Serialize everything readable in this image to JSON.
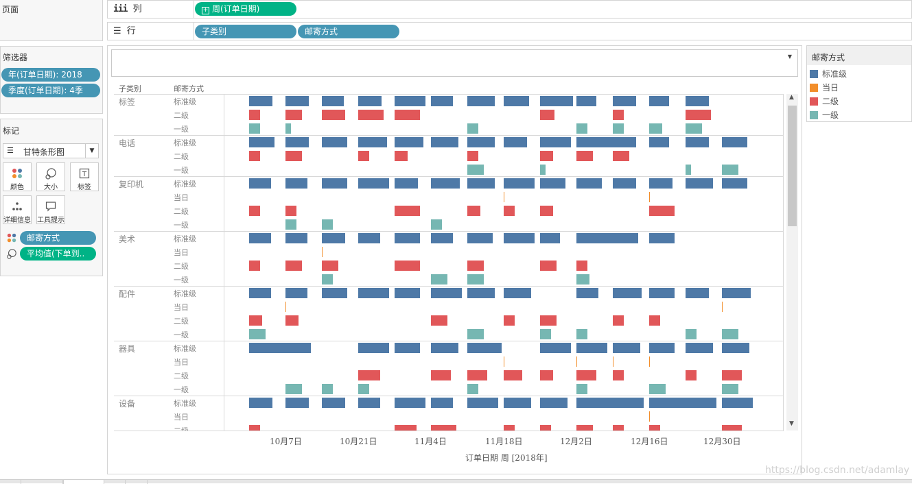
{
  "pages_shelf": {
    "title": "页面"
  },
  "columns_shelf": {
    "label": "列",
    "pills": [
      "周(订单日期)"
    ]
  },
  "rows_shelf": {
    "label": "行",
    "pills": [
      "子类别",
      "邮寄方式"
    ]
  },
  "filters": {
    "title": "筛选器",
    "pills": [
      "年(订单日期): 2018",
      "季度(订单日期): 4季"
    ]
  },
  "marks": {
    "title": "标记",
    "mark_type": "甘特条形图",
    "buttons": {
      "color": "颜色",
      "size": "大小",
      "label": "标签",
      "detail": "详细信息",
      "tooltip": "工具提示"
    },
    "fields": [
      "邮寄方式",
      "平均值(下单到.."
    ]
  },
  "legend": {
    "title": "邮寄方式",
    "items": [
      {
        "name": "标准级",
        "color": "#4e79a7"
      },
      {
        "name": "当日",
        "color": "#f28e2b"
      },
      {
        "name": "二级",
        "color": "#e15759"
      },
      {
        "name": "一级",
        "color": "#76b7b2"
      }
    ]
  },
  "view": {
    "header_category": "子类别",
    "header_ship": "邮寄方式",
    "x_axis_title": "订单日期 周 [2018年]"
  },
  "watermark": "https://blog.csdn.net/adamlay",
  "chart_data": {
    "type": "gantt",
    "x_axis": {
      "title": "订单日期 周 [2018年]",
      "unit": "week",
      "range": [
        "2018-09-30",
        "2018-12-30"
      ],
      "tick_labels": [
        "10月7日",
        "10月21日",
        "11月4日",
        "11月18日",
        "12月2日",
        "12月16日",
        "12月30日"
      ]
    },
    "colors": {
      "标准级": "#4e79a7",
      "当日": "#f28e2b",
      "二级": "#e15759",
      "一级": "#76b7b2"
    },
    "categories": [
      {
        "name": "标签",
        "rows": [
          {
            "ship": "标准级",
            "bars": [
              [
                0,
                0.65
              ],
              [
                1,
                0.65
              ],
              [
                2,
                0.6
              ],
              [
                3,
                0.65
              ],
              [
                4,
                0.85
              ],
              [
                5,
                0.6
              ],
              [
                6,
                0.75
              ],
              [
                7,
                0.7
              ],
              [
                8,
                0.9
              ],
              [
                9,
                0.55
              ],
              [
                10,
                0.65
              ],
              [
                11,
                0.55
              ],
              [
                12,
                0.65
              ]
            ]
          },
          {
            "ship": "二级",
            "bars": [
              [
                0,
                0.3
              ],
              [
                1,
                0.45
              ],
              [
                2,
                0.65
              ],
              [
                3,
                0.7
              ],
              [
                4,
                0.7
              ],
              [
                8,
                0.4
              ],
              [
                10,
                0.3
              ],
              [
                12,
                0.7
              ]
            ]
          },
          {
            "ship": "一级",
            "bars": [
              [
                0,
                0.3
              ],
              [
                1,
                0.15
              ],
              [
                6,
                0.3
              ],
              [
                9,
                0.3
              ],
              [
                10,
                0.3
              ],
              [
                11,
                0.35
              ],
              [
                12,
                0.45
              ]
            ]
          }
        ]
      },
      {
        "name": "电话",
        "rows": [
          {
            "ship": "标准级",
            "bars": [
              [
                0,
                0.7
              ],
              [
                1,
                0.65
              ],
              [
                2,
                0.7
              ],
              [
                3,
                0.8
              ],
              [
                4,
                0.8
              ],
              [
                5,
                0.75
              ],
              [
                6,
                0.75
              ],
              [
                7,
                0.65
              ],
              [
                8,
                0.85
              ],
              [
                9,
                1.65
              ],
              [
                11,
                0.55
              ],
              [
                12,
                0.65
              ],
              [
                13,
                0.7
              ]
            ]
          },
          {
            "ship": "二级",
            "bars": [
              [
                0,
                0.3
              ],
              [
                1,
                0.45
              ],
              [
                3,
                0.3
              ],
              [
                4,
                0.35
              ],
              [
                6,
                0.3
              ],
              [
                8,
                0.35
              ],
              [
                9,
                0.45
              ],
              [
                10,
                0.45
              ]
            ]
          },
          {
            "ship": "一级",
            "bars": [
              [
                6,
                0.45
              ],
              [
                8,
                0.15
              ],
              [
                12,
                0.15
              ],
              [
                13,
                0.45
              ]
            ]
          }
        ]
      },
      {
        "name": "复印机",
        "rows": [
          {
            "ship": "标准级",
            "bars": [
              [
                0,
                0.6
              ],
              [
                1,
                0.6
              ],
              [
                2,
                0.7
              ],
              [
                3,
                0.85
              ],
              [
                4,
                0.65
              ],
              [
                5,
                0.8
              ],
              [
                6,
                0.75
              ],
              [
                7,
                0.85
              ],
              [
                8,
                0.7
              ],
              [
                9,
                0.7
              ],
              [
                10,
                0.65
              ],
              [
                11,
                0.65
              ],
              [
                12,
                0.75
              ],
              [
                13,
                0.7
              ]
            ]
          },
          {
            "ship": "当日",
            "bars": [
              [
                7,
                0.02
              ],
              [
                11,
                0.02
              ]
            ]
          },
          {
            "ship": "二级",
            "bars": [
              [
                0,
                0.3
              ],
              [
                1,
                0.3
              ],
              [
                4,
                0.7
              ],
              [
                6,
                0.35
              ],
              [
                7,
                0.3
              ],
              [
                8,
                0.35
              ],
              [
                11,
                0.7
              ]
            ]
          },
          {
            "ship": "一级",
            "bars": [
              [
                1,
                0.3
              ],
              [
                2,
                0.3
              ],
              [
                5,
                0.3
              ]
            ]
          }
        ]
      },
      {
        "name": "美术",
        "rows": [
          {
            "ship": "标准级",
            "bars": [
              [
                0,
                0.6
              ],
              [
                1,
                0.6
              ],
              [
                2,
                0.65
              ],
              [
                3,
                0.6
              ],
              [
                4,
                0.7
              ],
              [
                5,
                0.6
              ],
              [
                6,
                0.7
              ],
              [
                7,
                0.85
              ],
              [
                8,
                0.55
              ],
              [
                9,
                1.7
              ],
              [
                11,
                0.7
              ]
            ]
          },
          {
            "ship": "当日",
            "bars": [
              [
                2,
                0.02
              ]
            ]
          },
          {
            "ship": "二级",
            "bars": [
              [
                0,
                0.3
              ],
              [
                1,
                0.45
              ],
              [
                2,
                0.45
              ],
              [
                4,
                0.7
              ],
              [
                6,
                0.45
              ],
              [
                8,
                0.45
              ],
              [
                9,
                0.3
              ]
            ]
          },
          {
            "ship": "一级",
            "bars": [
              [
                2,
                0.3
              ],
              [
                5,
                0.45
              ],
              [
                6,
                0.45
              ],
              [
                9,
                0.35
              ]
            ]
          }
        ]
      },
      {
        "name": "配件",
        "rows": [
          {
            "ship": "标准级",
            "bars": [
              [
                0,
                0.6
              ],
              [
                1,
                0.6
              ],
              [
                2,
                0.7
              ],
              [
                3,
                0.85
              ],
              [
                4,
                0.7
              ],
              [
                5,
                0.85
              ],
              [
                6,
                0.75
              ],
              [
                7,
                0.75
              ],
              [
                9,
                0.6
              ],
              [
                10,
                0.8
              ],
              [
                11,
                0.7
              ],
              [
                12,
                0.65
              ],
              [
                13,
                0.8
              ]
            ]
          },
          {
            "ship": "当日",
            "bars": [
              [
                1,
                0.02
              ],
              [
                13,
                0.02
              ]
            ]
          },
          {
            "ship": "二级",
            "bars": [
              [
                0,
                0.35
              ],
              [
                1,
                0.35
              ],
              [
                5,
                0.45
              ],
              [
                7,
                0.3
              ],
              [
                8,
                0.45
              ],
              [
                10,
                0.3
              ],
              [
                11,
                0.3
              ]
            ]
          },
          {
            "ship": "一级",
            "bars": [
              [
                0,
                0.45
              ],
              [
                6,
                0.45
              ],
              [
                8,
                0.3
              ],
              [
                9,
                0.3
              ],
              [
                12,
                0.3
              ],
              [
                13,
                0.45
              ]
            ]
          }
        ]
      },
      {
        "name": "器具",
        "rows": [
          {
            "ship": "标准级",
            "bars": [
              [
                0,
                1.7
              ],
              [
                3,
                0.85
              ],
              [
                4,
                0.7
              ],
              [
                5,
                0.75
              ],
              [
                6,
                0.95
              ],
              [
                8,
                0.85
              ],
              [
                9,
                0.85
              ],
              [
                10,
                0.75
              ],
              [
                11,
                0.7
              ],
              [
                12,
                0.75
              ],
              [
                13,
                0.75
              ]
            ]
          },
          {
            "ship": "当日",
            "bars": [
              [
                7,
                0.02
              ],
              [
                9,
                0.02
              ],
              [
                10,
                0.02
              ],
              [
                11,
                0.02
              ]
            ]
          },
          {
            "ship": "二级",
            "bars": [
              [
                3,
                0.6
              ],
              [
                5,
                0.55
              ],
              [
                6,
                0.55
              ],
              [
                7,
                0.5
              ],
              [
                8,
                0.35
              ],
              [
                9,
                0.55
              ],
              [
                10,
                0.3
              ],
              [
                12,
                0.3
              ],
              [
                13,
                0.55
              ]
            ]
          },
          {
            "ship": "一级",
            "bars": [
              [
                1,
                0.45
              ],
              [
                2,
                0.3
              ],
              [
                3,
                0.3
              ],
              [
                6,
                0.3
              ],
              [
                9,
                0.3
              ],
              [
                11,
                0.45
              ],
              [
                13,
                0.45
              ]
            ]
          }
        ]
      },
      {
        "name": "设备",
        "rows": [
          {
            "ship": "标准级",
            "bars": [
              [
                0,
                0.65
              ],
              [
                1,
                0.65
              ],
              [
                2,
                0.65
              ],
              [
                3,
                0.6
              ],
              [
                4,
                0.85
              ],
              [
                5,
                0.6
              ],
              [
                6,
                0.85
              ],
              [
                7,
                0.75
              ],
              [
                8,
                0.75
              ],
              [
                9,
                1.85
              ],
              [
                11,
                1.85
              ],
              [
                13,
                0.85
              ]
            ]
          },
          {
            "ship": "当日",
            "bars": [
              [
                11,
                0.02
              ]
            ]
          },
          {
            "ship": "二级",
            "bars": [
              [
                0,
                0.3
              ],
              [
                4,
                0.6
              ],
              [
                5,
                0.7
              ],
              [
                7,
                0.3
              ],
              [
                8,
                0.3
              ],
              [
                9,
                0.45
              ],
              [
                10,
                0.3
              ],
              [
                11,
                0.3
              ],
              [
                13,
                0.55
              ]
            ]
          }
        ]
      }
    ]
  }
}
